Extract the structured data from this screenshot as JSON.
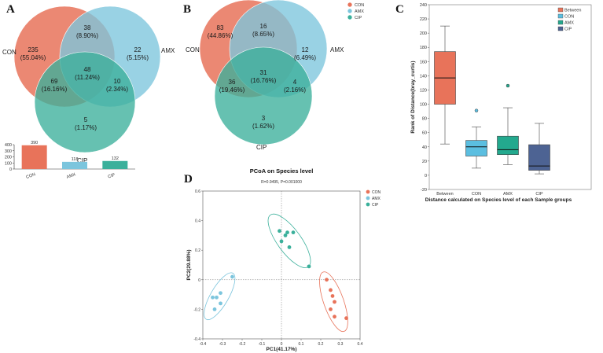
{
  "colors": {
    "CON": "#E8735A",
    "AMX": "#7CC5DD",
    "CIP": "#3BB09B",
    "Between": "#E8735A",
    "boxCON": "#5BBEE0",
    "boxAMX": "#23A98E",
    "boxCIP": "#4D6393"
  },
  "panelA": {
    "letter": "A",
    "labels": {
      "CON": "CON",
      "AMX": "AMX",
      "CIP": "CIP"
    },
    "regions": {
      "con_only": {
        "n": "235",
        "pct": "(55.04%)"
      },
      "con_amx": {
        "n": "38",
        "pct": "(8.90%)"
      },
      "amx_only": {
        "n": "22",
        "pct": "(5.15%)"
      },
      "all": {
        "n": "48",
        "pct": "(11.24%)"
      },
      "con_cip": {
        "n": "69",
        "pct": "(16.16%)"
      },
      "amx_cip": {
        "n": "10",
        "pct": "(2.34%)"
      },
      "cip_only": {
        "n": "5",
        "pct": "(1.17%)"
      }
    }
  },
  "panelB": {
    "letter": "B",
    "labels": {
      "CON": "CON",
      "AMX": "AMX",
      "CIP": "CIP"
    },
    "legend": [
      "CON",
      "AMX",
      "CIP"
    ],
    "regions": {
      "con_only": {
        "n": "83",
        "pct": "(44.86%)"
      },
      "con_amx": {
        "n": "16",
        "pct": "(8.65%)"
      },
      "amx_only": {
        "n": "12",
        "pct": "(6.49%)"
      },
      "all": {
        "n": "31",
        "pct": "(16.76%)"
      },
      "con_cip": {
        "n": "36",
        "pct": "(19.46%)"
      },
      "amx_cip": {
        "n": "4",
        "pct": "(2.16%)"
      },
      "cip_only": {
        "n": "3",
        "pct": "(1.62%)"
      }
    }
  },
  "panelC": {
    "letter": "C"
  },
  "panelD": {
    "letter": "D"
  },
  "chart_data": [
    {
      "type": "bar",
      "id": "A-bar",
      "categories": [
        "CON",
        "AMX",
        "CIP"
      ],
      "values": [
        390,
        118,
        132
      ],
      "yticks": [
        "400",
        "300",
        "200",
        "100",
        "0"
      ],
      "ylim": [
        0,
        400
      ]
    },
    {
      "type": "box",
      "id": "C-box",
      "ylabel": "Rank of Distance(bray_curtis)",
      "xlabel": "Distance calculated on Species level of each Sample groups",
      "categories": [
        "Between",
        "CON",
        "AMX",
        "CIP"
      ],
      "legend": [
        "Between",
        "CON",
        "AMX",
        "CIP"
      ],
      "ylim": [
        -20,
        240
      ],
      "yticks": [
        -20,
        0,
        20,
        40,
        60,
        80,
        100,
        120,
        140,
        160,
        180,
        200,
        220,
        240
      ],
      "boxes": [
        {
          "name": "Between",
          "min": 44,
          "q1": 100,
          "median": 137,
          "q3": 174,
          "max": 210,
          "outliers": []
        },
        {
          "name": "CON",
          "min": 10,
          "q1": 27,
          "median": 40,
          "q3": 49,
          "max": 68,
          "outliers": [
            91
          ]
        },
        {
          "name": "AMX",
          "min": 15,
          "q1": 29,
          "median": 36,
          "q3": 55,
          "max": 95,
          "outliers": [
            126
          ]
        },
        {
          "name": "CIP",
          "min": 2,
          "q1": 7,
          "median": 13,
          "q3": 43,
          "max": 73,
          "outliers": []
        }
      ]
    },
    {
      "type": "scatter",
      "id": "D-pcoa",
      "title": "PCoA on Species level",
      "subtitle": "R=0.9495, P=0.001000",
      "xlabel": "PC1(41.17%)",
      "ylabel": "PC2(29.88%)",
      "xlim": [
        -0.4,
        0.4
      ],
      "ylim": [
        -0.4,
        0.6
      ],
      "xticks": [
        "-0.4",
        "-0.3",
        "-0.2",
        "-0.1",
        "0",
        "0.1",
        "0.2",
        "0.3",
        "0.4"
      ],
      "yticks": [
        "0.6",
        "0.4",
        "0.2",
        "0",
        "-0.2",
        "-0.4"
      ],
      "legend": [
        "CON",
        "AMX",
        "CIP"
      ],
      "series": [
        {
          "name": "CON",
          "points": [
            [
              0.23,
              0.0
            ],
            [
              0.25,
              -0.07
            ],
            [
              0.26,
              -0.11
            ],
            [
              0.27,
              -0.15
            ],
            [
              0.25,
              -0.2
            ],
            [
              0.27,
              -0.25
            ],
            [
              0.33,
              -0.26
            ]
          ]
        },
        {
          "name": "AMX",
          "points": [
            [
              -0.25,
              0.02
            ],
            [
              -0.31,
              -0.09
            ],
            [
              -0.33,
              -0.12
            ],
            [
              -0.35,
              -0.12
            ],
            [
              -0.31,
              -0.16
            ],
            [
              -0.34,
              -0.2
            ]
          ]
        },
        {
          "name": "CIP",
          "points": [
            [
              -0.01,
              0.33
            ],
            [
              0.03,
              0.32
            ],
            [
              0.06,
              0.32
            ],
            [
              0.02,
              0.3
            ],
            [
              0.0,
              0.26
            ],
            [
              0.04,
              0.22
            ],
            [
              0.14,
              0.09
            ]
          ]
        }
      ]
    }
  ]
}
